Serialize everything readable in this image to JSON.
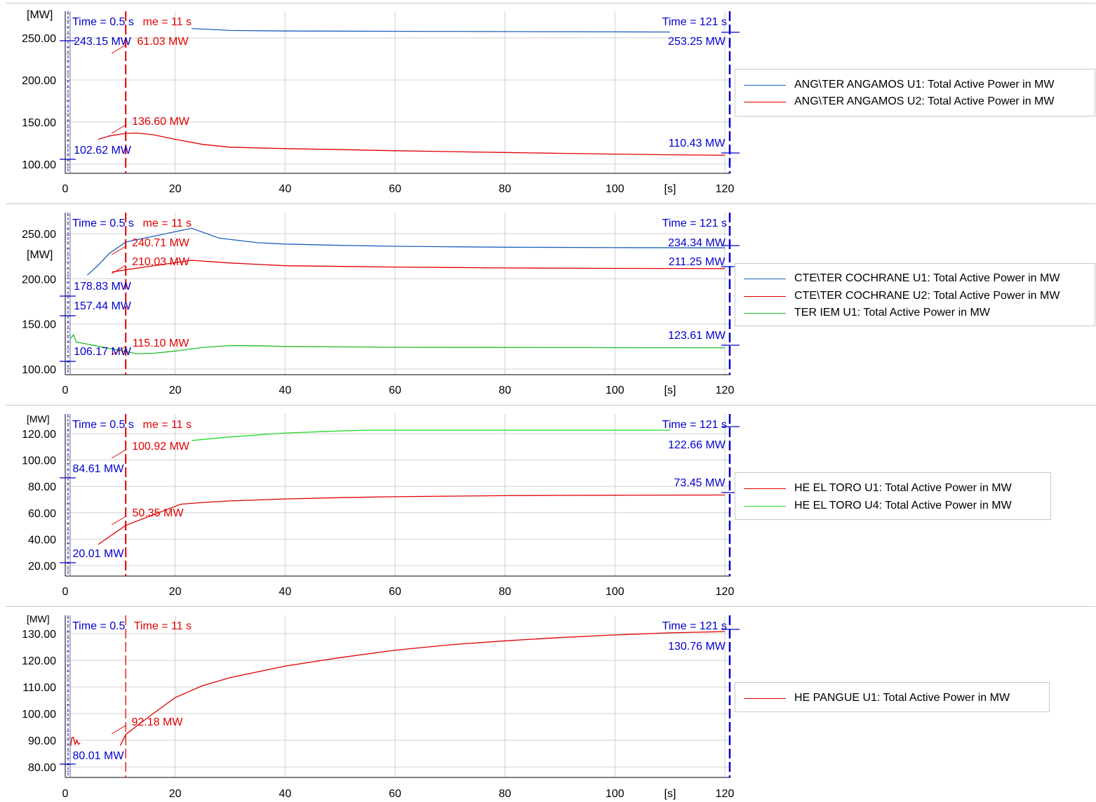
{
  "chart_data": [
    {
      "type": "line",
      "xlabel": "[s]",
      "ylabel": "[MW]",
      "xlim": [
        0,
        121
      ],
      "xticks": [
        0,
        20,
        40,
        60,
        80,
        100,
        120
      ],
      "ylim": [
        88,
        268
      ],
      "yticks": [
        100,
        150,
        200,
        250
      ],
      "ytick_labels": [
        "100.00",
        "150.00",
        "200.00",
        "250.00"
      ],
      "series": [
        {
          "name": "ANG\\TER ANGAMOS U1: Total Active Power in MW",
          "color": "#1f5fbf",
          "x": [
            23,
            30,
            40,
            60,
            80,
            100,
            110
          ],
          "y": [
            261.2,
            258.8,
            258.2,
            257.8,
            257.5,
            257.2,
            257.0
          ]
        },
        {
          "name": "ANG\\TER ANGAMOS U2: Total Active Power in MW",
          "color": "#e00000",
          "x": [
            6,
            8,
            11,
            13,
            16,
            20,
            25,
            30,
            40,
            50,
            60,
            70,
            80,
            90,
            100,
            110,
            120
          ],
          "y": [
            129.5,
            133.5,
            136.6,
            137.0,
            135.0,
            129.5,
            123.5,
            120.2,
            118.5,
            117.3,
            116.0,
            114.9,
            113.9,
            112.9,
            112.0,
            111.2,
            110.6
          ]
        }
      ],
      "markers": [
        {
          "label": "Time = 0.5 s",
          "x": 0.5,
          "color": "#0000cc",
          "values": [
            "243.15 MW",
            "102.62 MW"
          ]
        },
        {
          "label": "me = 11 s",
          "x": 11,
          "color": "#e00000",
          "values": [
            "61.03 MW",
            "136.60 MW"
          ]
        },
        {
          "label": "Time = 121 s",
          "x": 121,
          "color": "#0000cc",
          "values": [
            "253.25 MW",
            "110.43 MW"
          ]
        }
      ]
    },
    {
      "type": "line",
      "xlabel": "[s]",
      "ylabel": "[MW]",
      "xlim": [
        0,
        121
      ],
      "xticks": [
        0,
        20,
        40,
        60,
        80,
        100,
        120
      ],
      "ylim": [
        94,
        267
      ],
      "yticks": [
        100,
        150,
        200,
        250
      ],
      "ytick_labels": [
        "100.00",
        "150.00",
        "200.00",
        "250.00"
      ],
      "series": [
        {
          "name": "CTE\\TER COCHRANE U1: Total Active Power in MW",
          "color": "#1f5fbf",
          "x": [
            4,
            6,
            8,
            11,
            23,
            28,
            35,
            40,
            50,
            60,
            70,
            80,
            100,
            120
          ],
          "y": [
            204,
            215,
            228,
            240.7,
            256,
            245,
            240,
            238.5,
            237,
            236,
            235.5,
            235,
            234.5,
            234.3
          ]
        },
        {
          "name": "CTE\\TER COCHRANE U2: Total Active Power in MW",
          "color": "#e00000",
          "x": [
            8.5,
            11,
            23,
            30,
            40,
            60,
            80,
            100,
            120
          ],
          "y": [
            207.5,
            210.0,
            220.5,
            217.5,
            214.5,
            213.0,
            212.0,
            211.5,
            211.3
          ]
        },
        {
          "name": "TER IEM U1: Total Active Power in MW",
          "color": "#22bb22",
          "x": [
            1,
            1.5,
            2,
            13,
            16,
            20,
            25,
            30,
            35,
            40,
            60,
            80,
            100,
            120
          ],
          "y": [
            134,
            138,
            130,
            117,
            117.5,
            120,
            124,
            126,
            125.8,
            125,
            124.2,
            123.9,
            123.7,
            123.6
          ]
        }
      ],
      "markers": [
        {
          "label": "Time = 0.5 s",
          "x": 0.5,
          "color": "#0000cc",
          "values": [
            "178.83 MW",
            "157.44 MW",
            "106.17 MW"
          ]
        },
        {
          "label": "me = 11 s",
          "x": 11,
          "color": "#e00000",
          "values": [
            "240.71 MW",
            "210.03 MW",
            "115.10 MW"
          ]
        },
        {
          "label": "Time = 121 s",
          "x": 121,
          "color": "#0000cc",
          "values": [
            "234.34 MW",
            "211.25 MW",
            "123.61 MW"
          ]
        }
      ]
    },
    {
      "type": "line",
      "xlabel": "",
      "ylabel": "[MW]",
      "xlim": [
        0,
        121
      ],
      "xticks": [
        0,
        20,
        40,
        60,
        80,
        100,
        120
      ],
      "ylim": [
        11,
        128.5
      ],
      "yticks": [
        20,
        40,
        60,
        80,
        100,
        120
      ],
      "ytick_labels": [
        "20.00",
        "40.00",
        "60.00",
        "80.00",
        "100.00",
        "120.00"
      ],
      "series": [
        {
          "name": "HE EL TORO U1: Total Active Power in MW",
          "color": "#e00000",
          "x": [
            6,
            11,
            21,
            25,
            30,
            40,
            50,
            60,
            70,
            80,
            90,
            100,
            110,
            120
          ],
          "y": [
            36,
            50.4,
            66.5,
            67.8,
            69,
            70.5,
            71.5,
            72.2,
            72.6,
            73.0,
            73.2,
            73.3,
            73.4,
            73.45
          ]
        },
        {
          "name": "HE EL TORO U4: Total Active Power in MW",
          "color": "#22dd22",
          "x": [
            23,
            30,
            40,
            50,
            55,
            60,
            80,
            100,
            110
          ],
          "y": [
            114.8,
            117.5,
            120.5,
            122,
            122.6,
            122.6,
            122.6,
            122.6,
            122.6
          ]
        }
      ],
      "markers": [
        {
          "label": "Time = 0.5 s",
          "x": 0.5,
          "color": "#0000cc",
          "values": [
            "84.61 MW",
            "20.01 MW"
          ]
        },
        {
          "label": "me = 11 s",
          "x": 11,
          "color": "#e00000",
          "values": [
            "100.92 MW",
            "50.35 MW"
          ]
        },
        {
          "label": "Time = 121 s",
          "x": 121,
          "color": "#0000cc",
          "values": [
            "122.66 MW",
            "73.45 MW"
          ]
        }
      ]
    },
    {
      "type": "line",
      "xlabel": "[s]",
      "ylabel": "[MW]",
      "xlim": [
        0,
        121
      ],
      "xticks": [
        0,
        20,
        40,
        60,
        80,
        100,
        120
      ],
      "ylim": [
        75.5,
        135
      ],
      "yticks": [
        80,
        90,
        100,
        110,
        120,
        130
      ],
      "ytick_labels": [
        "80.00",
        "90.00",
        "100.00",
        "110.00",
        "120.00",
        "130.00"
      ],
      "series": [
        {
          "name": "HE PANGUE U1: Total Active Power in MW",
          "color": "#e00000",
          "x": [
            10,
            11,
            16,
            20,
            25,
            30,
            40,
            50,
            60,
            70,
            80,
            90,
            100,
            110,
            120
          ],
          "y": [
            88,
            92.2,
            100,
            106,
            110.5,
            113.5,
            117.8,
            121,
            123.8,
            125.8,
            127.3,
            128.5,
            129.5,
            130.3,
            130.76
          ]
        },
        {
          "name": "",
          "color": "#e00000",
          "x": [
            1,
            1.2,
            1.5,
            1.8,
            2.1,
            2.4,
            2.7
          ],
          "y": [
            88,
            91,
            91,
            88.5,
            90,
            88.5,
            89
          ]
        }
      ],
      "markers": [
        {
          "label": "Time = 0.5",
          "x": 0.5,
          "color": "#0000cc",
          "values": [
            "80.01 MW"
          ]
        },
        {
          "label": "Time = 11 s",
          "x": 11,
          "color": "#e00000",
          "values": [
            "92.18 MW"
          ]
        },
        {
          "label": "Time = 121 s",
          "x": 121,
          "color": "#0000cc",
          "values": [
            "130.76 MW"
          ]
        }
      ]
    }
  ]
}
